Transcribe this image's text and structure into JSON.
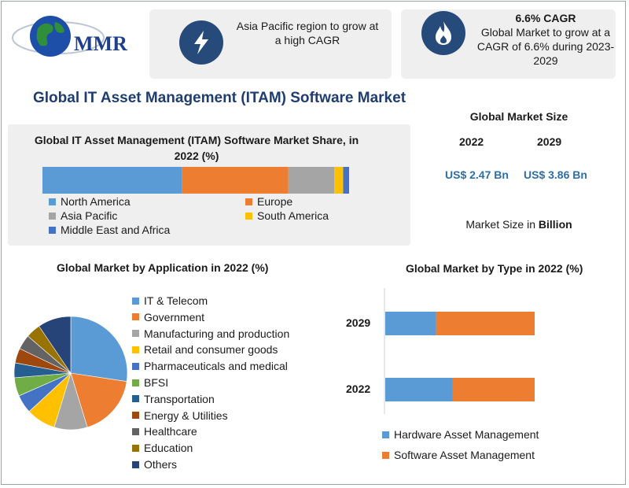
{
  "header": {
    "logo_text": "MMR",
    "card1": {
      "text": "Asia Pacific region to grow at a high CAGR",
      "icon": "lightning-icon"
    },
    "card2": {
      "heading": "6.6% CAGR",
      "text": "Global Market to grow at a CAGR of 6.6% during 2023-2029",
      "icon": "flame-icon"
    }
  },
  "main_title": "Global IT Asset Management (ITAM) Software Market",
  "market_size": {
    "title": "Global Market Size",
    "years": [
      "2022",
      "2029"
    ],
    "values": [
      "US$ 2.47 Bn",
      "US$ 3.86 Bn"
    ],
    "unit_prefix": "Market Size in",
    "unit_bold": "Billion"
  },
  "colors": {
    "north_america": "#5b9bd5",
    "europe": "#ed7d31",
    "asia_pacific": "#a5a5a5",
    "south_america": "#ffc000",
    "mea": "#4472c4",
    "dark_blue": "#264a7a"
  },
  "chart_data": [
    {
      "type": "bar",
      "orientation": "horizontal-stacked",
      "title": "Global IT Asset Management (ITAM) Software Market Share, in 2022 (%)",
      "series": [
        {
          "name": "North America",
          "values": [
            47
          ],
          "color": "#5b9bd5"
        },
        {
          "name": "Europe",
          "values": [
            36
          ],
          "color": "#ed7d31"
        },
        {
          "name": "Asia Pacific",
          "values": [
            15.5
          ],
          "color": "#a5a5a5"
        },
        {
          "name": "South America",
          "values": [
            3
          ],
          "color": "#ffc000"
        },
        {
          "name": "Middle East and Africa",
          "values": [
            2
          ],
          "color": "#4472c4"
        }
      ],
      "legend": [
        "North America",
        "Europe",
        "Asia Pacific",
        "South America",
        "Middle East and Africa"
      ]
    },
    {
      "type": "pie",
      "title": "Global Market by Application in 2022 (%)",
      "categories": [
        "IT & Telecom",
        "Government",
        "Manufacturing and production",
        "Retail and consumer goods",
        "Pharmaceuticals and medical",
        "BFSI",
        "Transportation",
        "Energy & Utilities",
        "Healthcare",
        "Education",
        "Others"
      ],
      "values": [
        26,
        17,
        9,
        8,
        5,
        5,
        4,
        4,
        4,
        4,
        9
      ],
      "colors": [
        "#5b9bd5",
        "#ed7d31",
        "#a5a5a5",
        "#ffc000",
        "#4472c4",
        "#70ad47",
        "#255e91",
        "#9e480e",
        "#636363",
        "#997300",
        "#264478"
      ]
    },
    {
      "type": "bar",
      "orientation": "horizontal-stacked",
      "title": "Global Market by Type in 2022 (%)",
      "categories": [
        "2029",
        "2022"
      ],
      "series": [
        {
          "name": "Hardware Asset Management",
          "values": [
            34,
            45
          ],
          "color": "#5b9bd5"
        },
        {
          "name": "Software Asset Management",
          "values": [
            66,
            55
          ],
          "color": "#ed7d31"
        }
      ]
    }
  ]
}
